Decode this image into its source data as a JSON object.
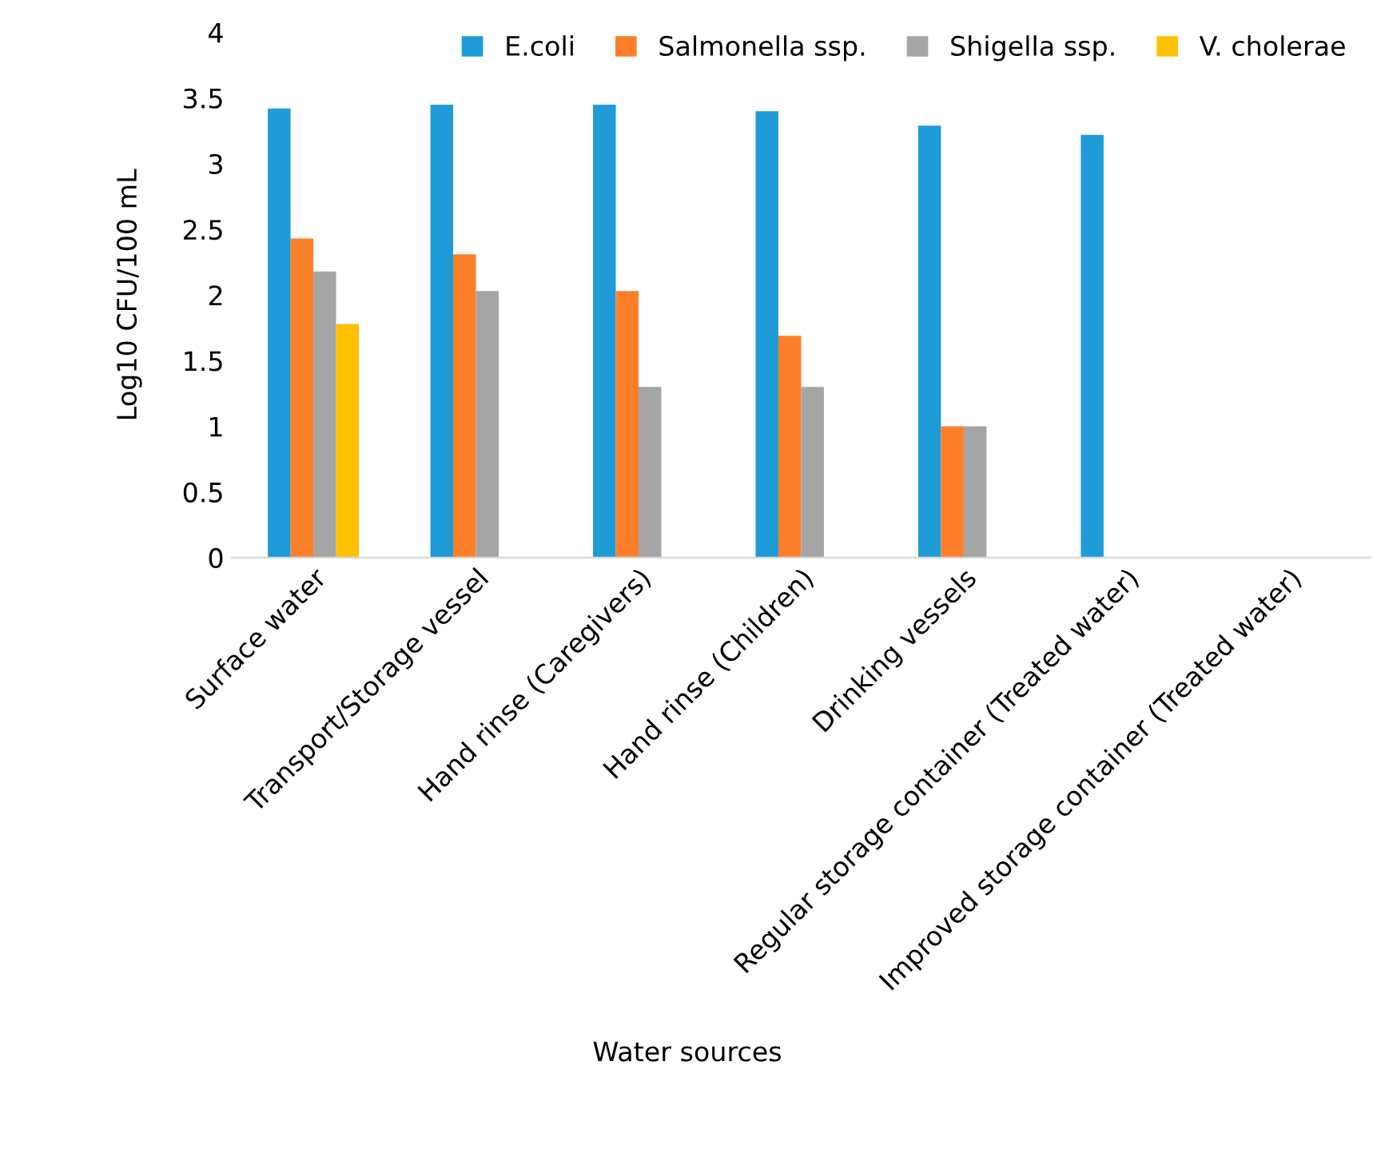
{
  "chart_data": {
    "type": "bar",
    "xlabel": "Water sources",
    "ylabel": "Log10 CFU/100 mL",
    "categories": [
      "Surface water",
      "Transport/Storage vessel",
      "Hand rinse (Caregivers)",
      "Hand rinse (Children)",
      "Drinking vessels",
      "Regular storage container (Treated water)",
      "Improved storage container (Treated water)"
    ],
    "series": [
      {
        "name": "E.coli",
        "color": "#1f9bd7",
        "values": [
          3.42,
          3.45,
          3.45,
          3.4,
          3.29,
          3.22,
          null
        ]
      },
      {
        "name": "Salmonella ssp.",
        "color": "#fe7f2a",
        "values": [
          2.43,
          2.31,
          2.03,
          1.69,
          1.0,
          null,
          null
        ]
      },
      {
        "name": "Shigella ssp.",
        "color": "#a5a5a5",
        "values": [
          2.18,
          2.03,
          1.3,
          1.3,
          1.0,
          null,
          null
        ]
      },
      {
        "name": "V. cholerae",
        "color": "#ffc000",
        "values": [
          1.78,
          null,
          null,
          null,
          null,
          null,
          null
        ]
      }
    ],
    "ylim": [
      0,
      4
    ],
    "yticks": [
      0,
      0.5,
      1,
      1.5,
      2,
      2.5,
      3,
      3.5,
      4
    ],
    "grid": false,
    "legend": "top right"
  }
}
